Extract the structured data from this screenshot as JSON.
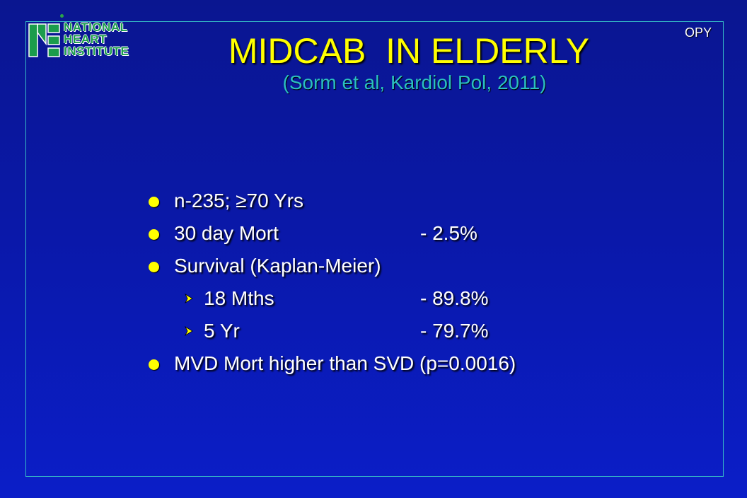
{
  "logo": {
    "line1": "NATIONAL",
    "line2": "HEART",
    "line3": "INSTITUTE",
    "icon": "nhi-logo-icon",
    "color": "#1b9c4c"
  },
  "corner_label": "OPY",
  "title": "MIDCAB  IN ELDERLY",
  "subtitle": "(Sorm et al, Kardiol Pol, 2011)",
  "bullets": [
    {
      "level": 1,
      "label": "n-235; ≥70 Yrs",
      "value": ""
    },
    {
      "level": 1,
      "label": "30 day Mort",
      "value": "- 2.5%"
    },
    {
      "level": 1,
      "label": "Survival (Kaplan-Meier)",
      "value": ""
    },
    {
      "level": 2,
      "label": "18 Mths",
      "value": "- 89.8%"
    },
    {
      "level": 2,
      "label": "5 Yr",
      "value": "- 79.7%"
    },
    {
      "level": 1,
      "label": "MVD Mort higher than SVD (p=0.0016)",
      "value": ""
    }
  ],
  "colors": {
    "background": "#0a18a8",
    "border": "#35b9c6",
    "title": "#ffff00",
    "subtitle": "#2bc0c0",
    "text": "#ffffff",
    "bullet": "#ffff00"
  },
  "icons": {
    "level1_bullet": "dot-bullet-icon",
    "level2_bullet": "arrow-bullet-icon"
  }
}
